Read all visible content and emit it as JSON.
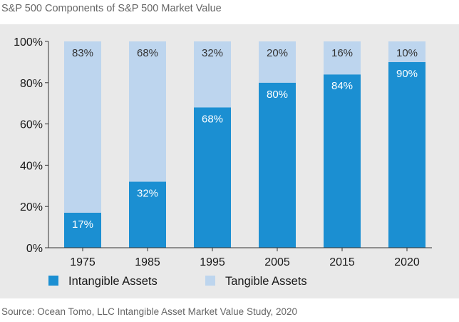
{
  "title": "S&P 500 Components of S&P 500 Market Value",
  "source": "Source: Ocean Tomo, LLC Intangible Asset Market Value Study, 2020",
  "colors": {
    "intangible": "#1b8fd2",
    "tangible": "#bdd5ee",
    "panel": "#e9e9e9",
    "axis": "#333333"
  },
  "chart_data": {
    "type": "bar",
    "stacked": true,
    "categories": [
      "1975",
      "1985",
      "1995",
      "2005",
      "2015",
      "2020"
    ],
    "series": [
      {
        "name": "Intangible Assets",
        "values": [
          17,
          32,
          68,
          80,
          84,
          90
        ],
        "labels": [
          "17%",
          "32%",
          "68%",
          "80%",
          "84%",
          "90%"
        ]
      },
      {
        "name": "Tangible Assets",
        "values": [
          83,
          68,
          32,
          20,
          16,
          10
        ],
        "labels": [
          "83%",
          "68%",
          "32%",
          "20%",
          "16%",
          "10%"
        ]
      }
    ],
    "ylim": [
      0,
      100
    ],
    "yticks": [
      "0%",
      "20%",
      "40%",
      "60%",
      "80%",
      "100%"
    ],
    "ytick_values": [
      0,
      20,
      40,
      60,
      80,
      100
    ],
    "grid": false,
    "legend_position": "bottom-left",
    "xlabel": "",
    "ylabel": ""
  }
}
